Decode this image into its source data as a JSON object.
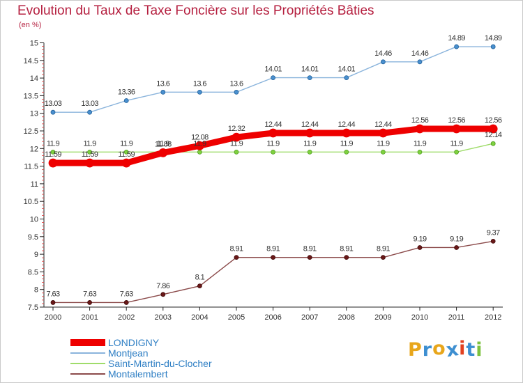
{
  "title": "Evolution du Taux de Taxe Foncière sur les Propriétés Bâties",
  "unit": "(en %)",
  "logo": {
    "letters": [
      "P",
      "r",
      "o",
      "x",
      "i",
      "t",
      "i"
    ],
    "colors": [
      "#e8a61b",
      "#3d8fd1",
      "#e8a61b",
      "#3d8fd1",
      "#e2401f",
      "#3d8fd1",
      "#7cc23f"
    ]
  },
  "chart_data": {
    "type": "line",
    "title": "Evolution du Taux de Taxe Foncière sur les Propriétés Bâties",
    "ylabel": "(en %)",
    "xlabel": "",
    "x": [
      "2000",
      "2001",
      "2002",
      "2003",
      "2004",
      "2005",
      "2006",
      "2007",
      "2008",
      "2009",
      "2010",
      "2011",
      "2012"
    ],
    "ylim": [
      7.5,
      15
    ],
    "yticks": [
      "7.5",
      "8",
      "8.5",
      "9",
      "9.5",
      "10",
      "10.5",
      "11",
      "11.5",
      "12",
      "12.5",
      "13",
      "13.5",
      "14",
      "14.5",
      "15"
    ],
    "grid": false,
    "legend_position": "bottom-left",
    "series": [
      {
        "name": "LONDIGNY",
        "color": "#ee0000",
        "values": [
          11.59,
          11.59,
          11.59,
          11.88,
          12.08,
          12.32,
          12.44,
          12.44,
          12.44,
          12.44,
          12.56,
          12.56,
          12.56
        ],
        "labels": [
          "11.59",
          "11.59",
          "11.59",
          "11.88",
          "12.08",
          "12.32",
          "12.44",
          "12.44",
          "12.44",
          "12.44",
          "12.56",
          "12.56",
          "12.56"
        ]
      },
      {
        "name": "Montjean",
        "color": "#8ab4dc",
        "values": [
          13.03,
          13.03,
          13.36,
          13.6,
          13.6,
          13.6,
          14.01,
          14.01,
          14.01,
          14.46,
          14.46,
          14.89,
          14.89
        ],
        "labels": [
          "13.03",
          "13.03",
          "13.36",
          "13.6",
          "13.6",
          "13.6",
          "14.01",
          "14.01",
          "14.01",
          "14.46",
          "14.46",
          "14.89",
          "14.89"
        ]
      },
      {
        "name": "Saint-Martin-du-Clocher",
        "color": "#9fdc6a",
        "values": [
          11.9,
          11.9,
          11.9,
          11.9,
          11.9,
          11.9,
          11.9,
          11.9,
          11.9,
          11.9,
          11.9,
          11.9,
          12.14
        ],
        "labels": [
          "11.9",
          "11.9",
          "11.9",
          "11.9",
          "11.9",
          "11.9",
          "11.9",
          "11.9",
          "11.9",
          "11.9",
          "11.9",
          "11.9",
          "12.14"
        ]
      },
      {
        "name": "Montalembert",
        "color": "#8b4a4a",
        "values": [
          7.63,
          7.63,
          7.63,
          7.86,
          8.1,
          8.91,
          8.91,
          8.91,
          8.91,
          8.91,
          9.19,
          9.19,
          9.37
        ],
        "labels": [
          "7.63",
          "7.63",
          "7.63",
          "7.86",
          "8.1",
          "8.91",
          "8.91",
          "8.91",
          "8.91",
          "8.91",
          "9.19",
          "9.19",
          "9.37"
        ]
      }
    ]
  }
}
